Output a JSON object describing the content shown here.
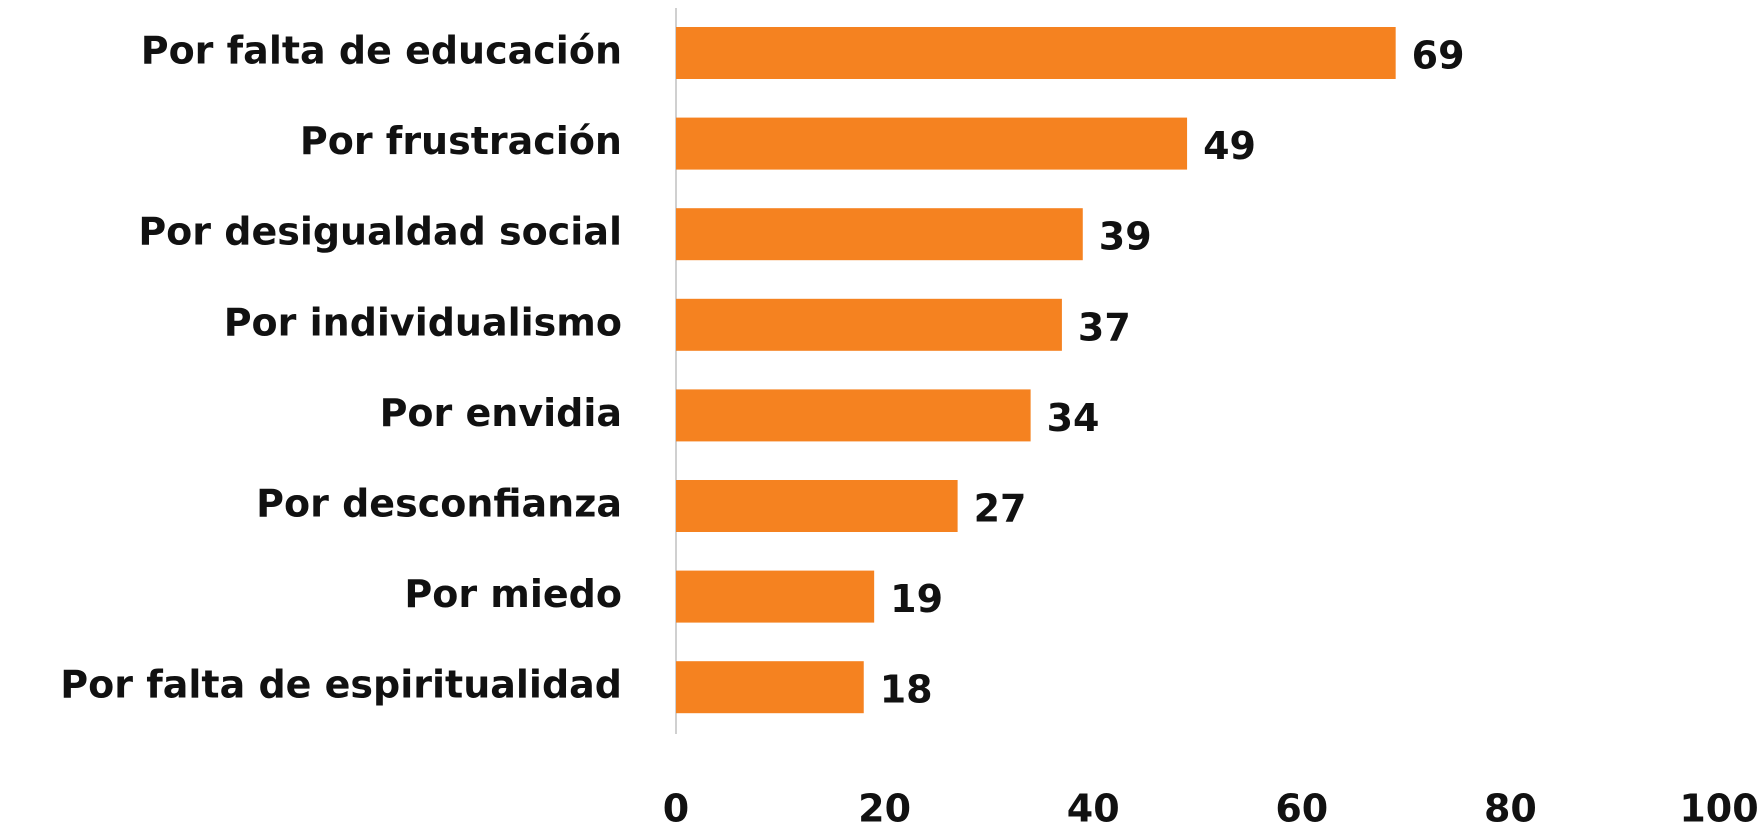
{
  "chart_data": {
    "type": "hbar",
    "categories": [
      "Por falta de educación",
      "Por frustración",
      "Por desigualdad social",
      "Por individualismo",
      "Por envidia",
      "Por desconfianza",
      "Por miedo",
      "Por falta de espiritualidad"
    ],
    "values": [
      69,
      49,
      39,
      37,
      34,
      27,
      19,
      18
    ],
    "color": "#f58220",
    "xlim": [
      0,
      100
    ],
    "xticks": [
      0,
      20,
      40,
      60,
      80,
      100
    ],
    "grid": false
  }
}
